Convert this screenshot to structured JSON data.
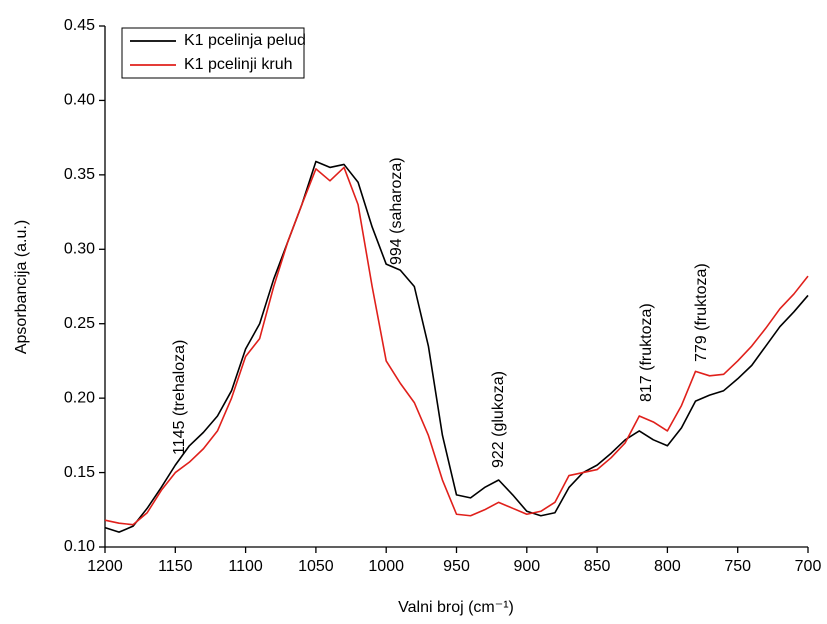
{
  "chart_data": {
    "type": "line",
    "xlabel": "Valni broj (cm⁻¹)",
    "ylabel": "Apsorbancija (a.u.)",
    "xlim": [
      1200,
      700
    ],
    "ylim": [
      0.1,
      0.45
    ],
    "xticks": [
      1200,
      1150,
      1100,
      1050,
      1000,
      950,
      900,
      850,
      800,
      750,
      700
    ],
    "yticks": [
      {
        "value": 0.1,
        "label": "0.10"
      },
      0.15,
      {
        "value": 0.2,
        "label": "0.20"
      },
      0.25,
      {
        "value": 0.3,
        "label": "0.30"
      },
      0.35,
      {
        "value": 0.4,
        "label": "0.40"
      },
      0.45
    ],
    "legend": "upper left",
    "x": [
      1200,
      1190,
      1180,
      1170,
      1160,
      1150,
      1140,
      1130,
      1120,
      1110,
      1100,
      1090,
      1080,
      1070,
      1060,
      1050,
      1040,
      1030,
      1020,
      1010,
      1000,
      990,
      980,
      970,
      960,
      950,
      940,
      930,
      920,
      910,
      900,
      890,
      880,
      870,
      860,
      850,
      840,
      830,
      820,
      810,
      800,
      790,
      780,
      770,
      760,
      750,
      740,
      730,
      720,
      710,
      700
    ],
    "series": [
      {
        "name": "K1 pcelinja pelud",
        "color": "#000000",
        "values": [
          0.113,
          0.11,
          0.114,
          0.126,
          0.14,
          0.155,
          0.168,
          0.177,
          0.188,
          0.205,
          0.233,
          0.25,
          0.28,
          0.305,
          0.33,
          0.359,
          0.355,
          0.357,
          0.345,
          0.315,
          0.29,
          0.286,
          0.275,
          0.235,
          0.175,
          0.135,
          0.133,
          0.14,
          0.145,
          0.135,
          0.124,
          0.121,
          0.123,
          0.14,
          0.15,
          0.155,
          0.163,
          0.172,
          0.178,
          0.172,
          0.168,
          0.18,
          0.198,
          0.202,
          0.205,
          0.213,
          0.222,
          0.235,
          0.248,
          0.258,
          0.269
        ]
      },
      {
        "name": "K1 pcelinji kruh",
        "color": "#e0201b",
        "values": [
          0.118,
          0.116,
          0.115,
          0.123,
          0.138,
          0.15,
          0.157,
          0.166,
          0.178,
          0.2,
          0.228,
          0.24,
          0.275,
          0.305,
          0.33,
          0.354,
          0.346,
          0.355,
          0.33,
          0.275,
          0.225,
          0.21,
          0.197,
          0.175,
          0.145,
          0.122,
          0.121,
          0.125,
          0.13,
          0.126,
          0.122,
          0.124,
          0.13,
          0.148,
          0.15,
          0.152,
          0.16,
          0.17,
          0.188,
          0.184,
          0.178,
          0.195,
          0.218,
          0.215,
          0.216,
          0.225,
          0.235,
          0.247,
          0.26,
          0.27,
          0.282
        ]
      }
    ],
    "annotations": [
      "1145 (trehaloza)",
      "994 (saharoza)",
      "922 (glukoza)",
      "817 (fruktoza)",
      "779 (fruktoza)"
    ]
  }
}
